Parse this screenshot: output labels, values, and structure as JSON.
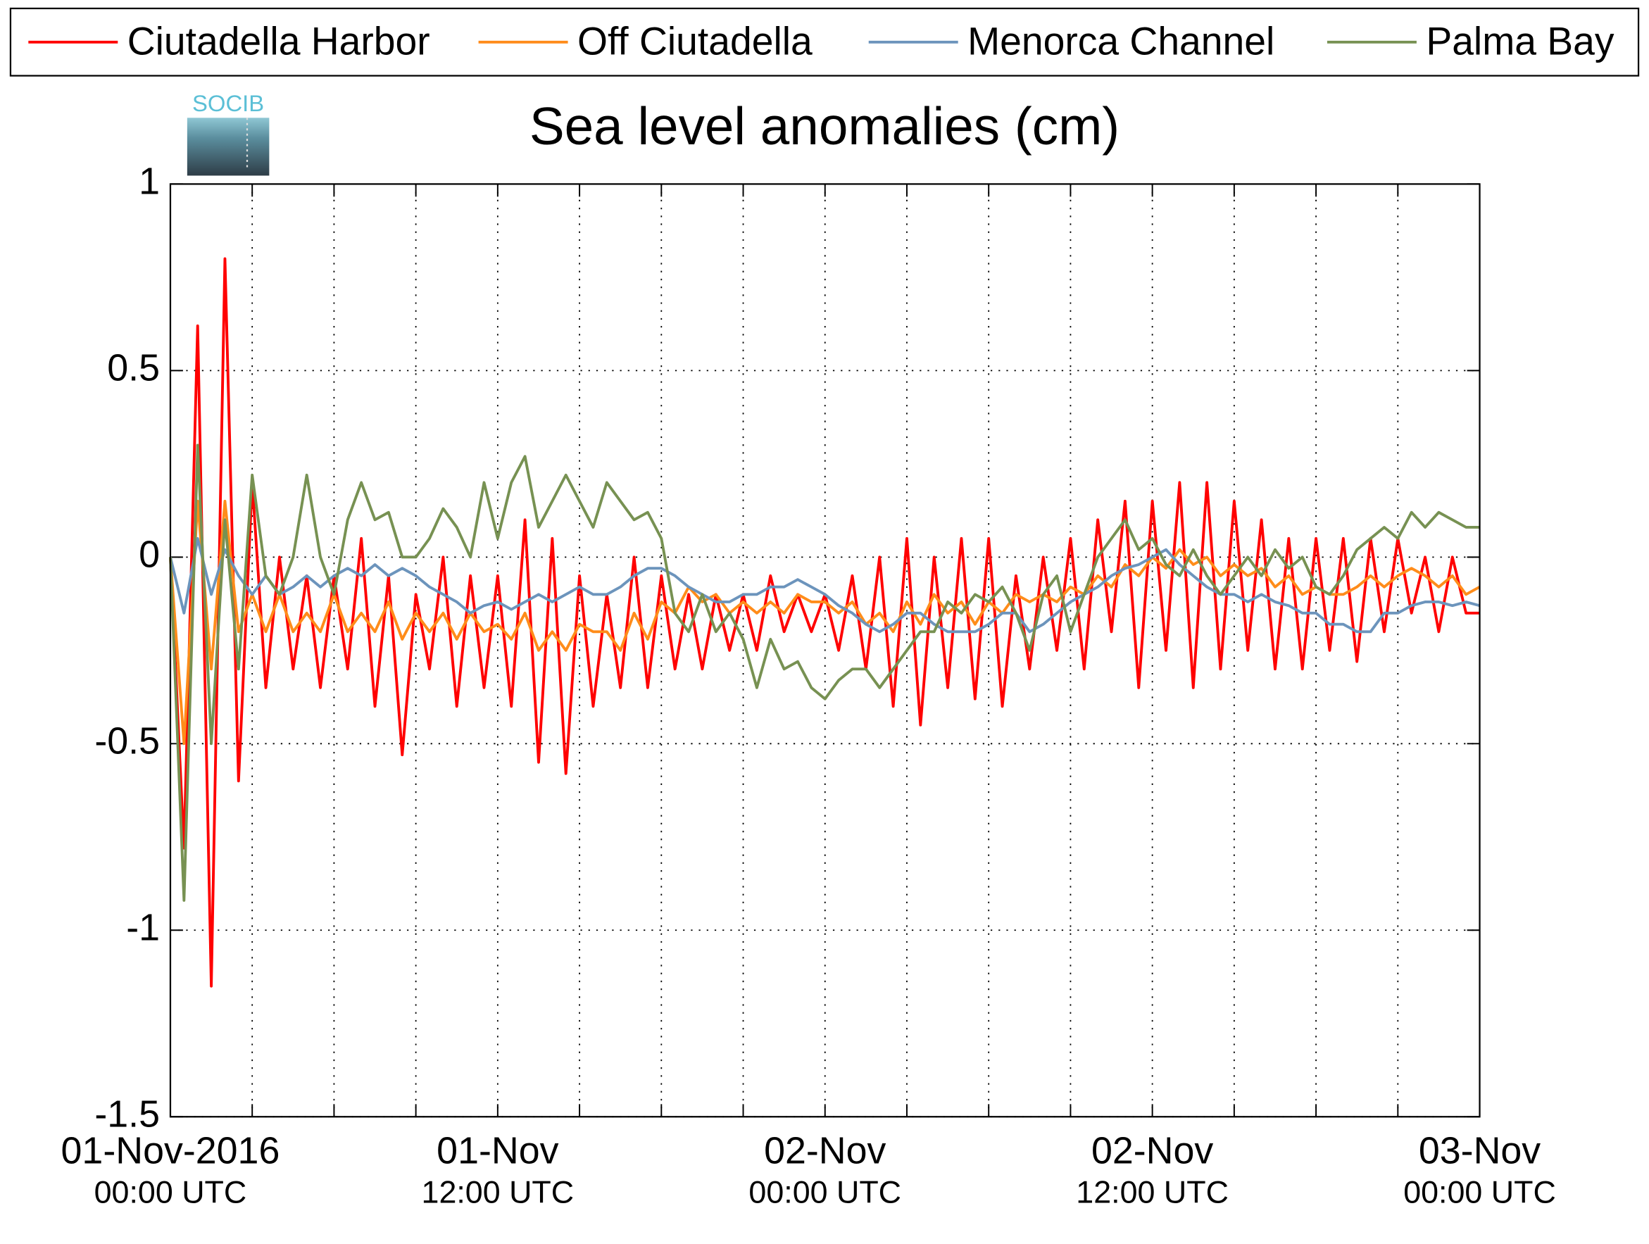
{
  "chart_data": {
    "type": "line",
    "title": "Sea level anomalies (cm)",
    "logo": "SOCIB",
    "x": [
      "2016-11-01T00:00",
      "2016-11-01T00:30",
      "2016-11-01T01:00",
      "2016-11-01T01:30",
      "2016-11-01T02:00",
      "2016-11-01T02:30",
      "2016-11-01T03:00",
      "2016-11-01T03:30",
      "2016-11-01T04:00",
      "2016-11-01T04:30",
      "2016-11-01T05:00",
      "2016-11-01T05:30",
      "2016-11-01T06:00",
      "2016-11-01T06:30",
      "2016-11-01T07:00",
      "2016-11-01T07:30",
      "2016-11-01T08:00",
      "2016-11-01T08:30",
      "2016-11-01T09:00",
      "2016-11-01T09:30",
      "2016-11-01T10:00",
      "2016-11-01T10:30",
      "2016-11-01T11:00",
      "2016-11-01T11:30",
      "2016-11-01T12:00",
      "2016-11-01T12:30",
      "2016-11-01T13:00",
      "2016-11-01T13:30",
      "2016-11-01T14:00",
      "2016-11-01T14:30",
      "2016-11-01T15:00",
      "2016-11-01T15:30",
      "2016-11-01T16:00",
      "2016-11-01T16:30",
      "2016-11-01T17:00",
      "2016-11-01T17:30",
      "2016-11-01T18:00",
      "2016-11-01T18:30",
      "2016-11-01T19:00",
      "2016-11-01T19:30",
      "2016-11-01T20:00",
      "2016-11-01T20:30",
      "2016-11-01T21:00",
      "2016-11-01T21:30",
      "2016-11-01T22:00",
      "2016-11-01T22:30",
      "2016-11-01T23:00",
      "2016-11-01T23:30",
      "2016-11-02T00:00",
      "2016-11-02T00:30",
      "2016-11-02T01:00",
      "2016-11-02T01:30",
      "2016-11-02T02:00",
      "2016-11-02T02:30",
      "2016-11-02T03:00",
      "2016-11-02T03:30",
      "2016-11-02T04:00",
      "2016-11-02T04:30",
      "2016-11-02T05:00",
      "2016-11-02T05:30",
      "2016-11-02T06:00",
      "2016-11-02T06:30",
      "2016-11-02T07:00",
      "2016-11-02T07:30",
      "2016-11-02T08:00",
      "2016-11-02T08:30",
      "2016-11-02T09:00",
      "2016-11-02T09:30",
      "2016-11-02T10:00",
      "2016-11-02T10:30",
      "2016-11-02T11:00",
      "2016-11-02T11:30",
      "2016-11-02T12:00",
      "2016-11-02T12:30",
      "2016-11-02T13:00",
      "2016-11-02T13:30",
      "2016-11-02T14:00",
      "2016-11-02T14:30",
      "2016-11-02T15:00",
      "2016-11-02T15:30",
      "2016-11-02T16:00",
      "2016-11-02T16:30",
      "2016-11-02T17:00",
      "2016-11-02T17:30",
      "2016-11-02T18:00",
      "2016-11-02T18:30",
      "2016-11-02T19:00",
      "2016-11-02T19:30",
      "2016-11-02T20:00",
      "2016-11-02T20:30",
      "2016-11-02T21:00",
      "2016-11-02T21:30",
      "2016-11-02T22:00",
      "2016-11-02T22:30",
      "2016-11-02T23:00",
      "2016-11-02T23:30",
      "2016-11-03T00:00"
    ],
    "series": [
      {
        "name": "Ciutadella Harbor",
        "color": "#ff0000",
        "values": [
          0.0,
          -0.78,
          0.62,
          -1.15,
          0.8,
          -0.6,
          0.2,
          -0.35,
          0.0,
          -0.3,
          -0.05,
          -0.35,
          -0.05,
          -0.3,
          0.05,
          -0.4,
          -0.05,
          -0.53,
          -0.1,
          -0.3,
          0.0,
          -0.4,
          -0.05,
          -0.35,
          -0.05,
          -0.4,
          0.1,
          -0.55,
          0.05,
          -0.58,
          -0.05,
          -0.4,
          -0.1,
          -0.35,
          0.0,
          -0.35,
          -0.05,
          -0.3,
          -0.1,
          -0.3,
          -0.1,
          -0.25,
          -0.1,
          -0.25,
          -0.05,
          -0.2,
          -0.1,
          -0.2,
          -0.1,
          -0.25,
          -0.05,
          -0.3,
          0.0,
          -0.4,
          0.05,
          -0.45,
          0.0,
          -0.35,
          0.05,
          -0.38,
          0.05,
          -0.4,
          -0.05,
          -0.3,
          0.0,
          -0.25,
          0.05,
          -0.3,
          0.1,
          -0.2,
          0.15,
          -0.35,
          0.15,
          -0.25,
          0.2,
          -0.35,
          0.2,
          -0.3,
          0.15,
          -0.25,
          0.1,
          -0.3,
          0.05,
          -0.3,
          0.05,
          -0.25,
          0.05,
          -0.28,
          0.05,
          -0.2,
          0.05,
          -0.15,
          0.0,
          -0.2,
          0.0,
          -0.15,
          -0.15
        ]
      },
      {
        "name": "Off Ciutadella",
        "color": "#ff8c1a",
        "values": [
          0.0,
          -0.5,
          0.15,
          -0.3,
          0.15,
          -0.2,
          -0.1,
          -0.2,
          -0.1,
          -0.2,
          -0.15,
          -0.2,
          -0.1,
          -0.2,
          -0.15,
          -0.2,
          -0.12,
          -0.22,
          -0.15,
          -0.2,
          -0.15,
          -0.22,
          -0.15,
          -0.2,
          -0.18,
          -0.22,
          -0.15,
          -0.25,
          -0.2,
          -0.25,
          -0.18,
          -0.2,
          -0.2,
          -0.25,
          -0.15,
          -0.22,
          -0.12,
          -0.15,
          -0.08,
          -0.12,
          -0.1,
          -0.15,
          -0.12,
          -0.15,
          -0.12,
          -0.15,
          -0.1,
          -0.12,
          -0.12,
          -0.15,
          -0.12,
          -0.18,
          -0.15,
          -0.2,
          -0.12,
          -0.18,
          -0.1,
          -0.15,
          -0.12,
          -0.18,
          -0.12,
          -0.15,
          -0.1,
          -0.12,
          -0.1,
          -0.12,
          -0.08,
          -0.1,
          -0.05,
          -0.08,
          -0.02,
          -0.05,
          0.0,
          -0.03,
          0.02,
          -0.02,
          0.0,
          -0.05,
          -0.02,
          -0.05,
          -0.03,
          -0.08,
          -0.05,
          -0.1,
          -0.08,
          -0.1,
          -0.1,
          -0.08,
          -0.05,
          -0.08,
          -0.05,
          -0.03,
          -0.05,
          -0.08,
          -0.05,
          -0.1,
          -0.08
        ]
      },
      {
        "name": "Menorca Channel",
        "color": "#6c94bc",
        "values": [
          0.0,
          -0.15,
          0.05,
          -0.1,
          0.02,
          -0.05,
          -0.1,
          -0.05,
          -0.1,
          -0.08,
          -0.05,
          -0.08,
          -0.05,
          -0.03,
          -0.05,
          -0.02,
          -0.05,
          -0.03,
          -0.05,
          -0.08,
          -0.1,
          -0.12,
          -0.15,
          -0.13,
          -0.12,
          -0.14,
          -0.12,
          -0.1,
          -0.12,
          -0.1,
          -0.08,
          -0.1,
          -0.1,
          -0.08,
          -0.05,
          -0.03,
          -0.03,
          -0.05,
          -0.08,
          -0.1,
          -0.12,
          -0.12,
          -0.1,
          -0.1,
          -0.08,
          -0.08,
          -0.06,
          -0.08,
          -0.1,
          -0.13,
          -0.15,
          -0.18,
          -0.2,
          -0.18,
          -0.15,
          -0.15,
          -0.18,
          -0.2,
          -0.2,
          -0.2,
          -0.18,
          -0.15,
          -0.15,
          -0.2,
          -0.18,
          -0.15,
          -0.12,
          -0.1,
          -0.08,
          -0.05,
          -0.03,
          -0.02,
          0.0,
          0.02,
          -0.02,
          -0.05,
          -0.08,
          -0.1,
          -0.1,
          -0.12,
          -0.1,
          -0.12,
          -0.13,
          -0.15,
          -0.15,
          -0.18,
          -0.18,
          -0.2,
          -0.2,
          -0.15,
          -0.15,
          -0.13,
          -0.12,
          -0.12,
          -0.13,
          -0.12,
          -0.13
        ]
      },
      {
        "name": "Palma Bay",
        "color": "#779152",
        "values": [
          0.0,
          -0.92,
          0.3,
          -0.5,
          0.1,
          -0.3,
          0.22,
          -0.05,
          -0.1,
          0.0,
          0.22,
          0.0,
          -0.1,
          0.1,
          0.2,
          0.1,
          0.12,
          0.0,
          0.0,
          0.05,
          0.13,
          0.08,
          0.0,
          0.2,
          0.05,
          0.2,
          0.27,
          0.08,
          0.15,
          0.22,
          0.15,
          0.08,
          0.2,
          0.15,
          0.1,
          0.12,
          0.05,
          -0.15,
          -0.2,
          -0.1,
          -0.2,
          -0.15,
          -0.22,
          -0.35,
          -0.22,
          -0.3,
          -0.28,
          -0.35,
          -0.38,
          -0.33,
          -0.3,
          -0.3,
          -0.35,
          -0.3,
          -0.25,
          -0.2,
          -0.2,
          -0.12,
          -0.15,
          -0.1,
          -0.12,
          -0.08,
          -0.15,
          -0.25,
          -0.1,
          -0.05,
          -0.2,
          -0.1,
          0.0,
          0.05,
          0.1,
          0.02,
          0.05,
          -0.02,
          -0.05,
          0.02,
          -0.05,
          -0.1,
          -0.05,
          0.0,
          -0.05,
          0.02,
          -0.03,
          0.0,
          -0.08,
          -0.1,
          -0.05,
          0.02,
          0.05,
          0.08,
          0.05,
          0.12,
          0.08,
          0.12,
          0.1,
          0.08,
          0.08
        ]
      }
    ],
    "xlim": [
      "2016-11-01T00:00",
      "2016-11-03T00:00"
    ],
    "xticks": [
      {
        "value": "2016-11-01T00:00",
        "label": [
          "01-Nov-2016",
          "00:00 UTC"
        ]
      },
      {
        "value": "2016-11-01T03:00",
        "label": null
      },
      {
        "value": "2016-11-01T06:00",
        "label": null
      },
      {
        "value": "2016-11-01T09:00",
        "label": null
      },
      {
        "value": "2016-11-01T12:00",
        "label": [
          "01-Nov",
          "12:00 UTC"
        ]
      },
      {
        "value": "2016-11-01T15:00",
        "label": null
      },
      {
        "value": "2016-11-01T18:00",
        "label": null
      },
      {
        "value": "2016-11-01T21:00",
        "label": null
      },
      {
        "value": "2016-11-02T00:00",
        "label": [
          "02-Nov",
          "00:00 UTC"
        ]
      },
      {
        "value": "2016-11-02T03:00",
        "label": null
      },
      {
        "value": "2016-11-02T06:00",
        "label": null
      },
      {
        "value": "2016-11-02T09:00",
        "label": null
      },
      {
        "value": "2016-11-02T12:00",
        "label": [
          "02-Nov",
          "12:00 UTC"
        ]
      },
      {
        "value": "2016-11-02T15:00",
        "label": null
      },
      {
        "value": "2016-11-02T18:00",
        "label": null
      },
      {
        "value": "2016-11-02T21:00",
        "label": null
      },
      {
        "value": "2016-11-03T00:00",
        "label": [
          "03-Nov",
          "00:00 UTC"
        ]
      }
    ],
    "ylim": [
      -1.5,
      1
    ],
    "yticks": [
      -1.5,
      -1,
      -0.5,
      0,
      0.5,
      1
    ],
    "grid": true,
    "legend": "top"
  }
}
